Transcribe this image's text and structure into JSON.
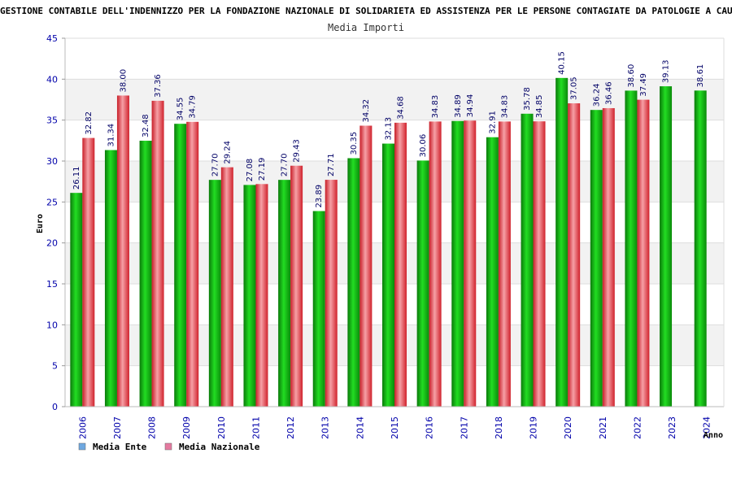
{
  "chart_data": {
    "type": "bar",
    "title": "GESTIONE CONTABILE DELL'INDENNIZZO PER LA FONDAZIONE NAZIONALE DI SOLIDARIETA ED ASSISTENZA PER LE PERSONE CONTAGIATE DA PATOLOGIE A CAUSA DI VACCINAZIONI O EMOTRASFUSIONI (c",
    "subtitle": "Media Importi",
    "xlabel": "Anno",
    "ylabel": "Euro",
    "ylim": [
      0,
      45
    ],
    "yticks": [
      0,
      5,
      10,
      15,
      20,
      25,
      30,
      35,
      40,
      45
    ],
    "categories": [
      "2006",
      "2007",
      "2008",
      "2009",
      "2010",
      "2011",
      "2012",
      "2013",
      "2014",
      "2015",
      "2016",
      "2017",
      "2018",
      "2019",
      "2020",
      "2021",
      "2022",
      "2023",
      "2024"
    ],
    "series": [
      {
        "name": "Media Ente",
        "color": "#11aa11",
        "values": [
          26.11,
          31.34,
          32.48,
          34.55,
          27.7,
          27.08,
          27.7,
          23.89,
          30.35,
          32.13,
          30.06,
          34.89,
          32.91,
          35.78,
          40.15,
          36.24,
          38.6,
          39.13,
          38.61
        ],
        "labels": [
          "26.11",
          "31.34",
          "32.48",
          "34.55",
          "27.70",
          "27.08",
          "27.70",
          "23.89",
          "30.35",
          "32.13",
          "30.06",
          "34.89",
          "32.91",
          "35.78",
          "40.15",
          "36.24",
          "38.60",
          "39.13",
          "38.61"
        ]
      },
      {
        "name": "Media Nazionale",
        "color": "#e8323c",
        "values": [
          32.82,
          38.0,
          37.36,
          34.79,
          29.24,
          27.19,
          29.43,
          27.71,
          34.32,
          34.68,
          34.83,
          34.94,
          34.83,
          34.85,
          37.05,
          36.46,
          37.49,
          null,
          null
        ],
        "labels": [
          "32.82",
          "38.00",
          "37.36",
          "34.79",
          "29.24",
          "27.19",
          "29.43",
          "27.71",
          "34.32",
          "34.68",
          "34.83",
          "34.94",
          "34.83",
          "34.85",
          "37.05",
          "36.46",
          "37.49",
          null,
          null
        ]
      }
    ],
    "legend": [
      {
        "label": "Media Ente",
        "swatch": "#6fa8e0"
      },
      {
        "label": "Media Nazionale",
        "swatch": "#e57aa0"
      }
    ],
    "legend_position": "bottom-left",
    "grid": true
  }
}
